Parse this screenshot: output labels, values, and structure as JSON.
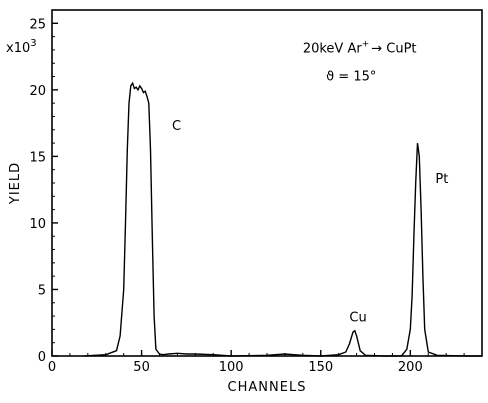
{
  "chart_data": {
    "type": "line",
    "title": "",
    "xlabel": "CHANNELS",
    "ylabel": "YIELD",
    "y_multiplier": "x10",
    "y_multiplier_exp": "3",
    "xlim": [
      0,
      240
    ],
    "ylim": [
      0,
      26000
    ],
    "x_ticks": [
      0,
      50,
      100,
      150,
      200
    ],
    "y_ticks": [
      0,
      5000,
      10000,
      15000,
      20000,
      25000
    ],
    "x_tick_labels": [
      "0",
      "50",
      "100",
      "150",
      "200"
    ],
    "y_tick_labels": [
      "0",
      "5",
      "10",
      "15",
      "20",
      "25"
    ],
    "grid": false,
    "annotations": [
      {
        "text": "20keV Ar",
        "sup": "+",
        "after": "→ CuPt",
        "x": 140,
        "y": 22800
      },
      {
        "text": "ϑ = 15°",
        "x": 153,
        "y": 20700
      },
      {
        "text": "C",
        "x": 67,
        "y": 17000
      },
      {
        "text": "Cu",
        "x": 166,
        "y": 2600
      },
      {
        "text": "Pt",
        "x": 214,
        "y": 13000
      }
    ],
    "series": [
      {
        "x": [
          18,
          30,
          36,
          38,
          40,
          41,
          42,
          43,
          44,
          45,
          46,
          47,
          48,
          49,
          50,
          51,
          52,
          53,
          54,
          55,
          56,
          57,
          58,
          60,
          62,
          65,
          70,
          75,
          80,
          90,
          100,
          120,
          130,
          135,
          140,
          150,
          160,
          164,
          166,
          168,
          169,
          170,
          172,
          175,
          185,
          195,
          198,
          200,
          201,
          202,
          203,
          204,
          205,
          206,
          207,
          208,
          210,
          215,
          230,
          240
        ],
        "y": [
          0,
          100,
          400,
          1500,
          5000,
          10000,
          15500,
          19000,
          20300,
          20500,
          20100,
          20200,
          20000,
          20300,
          20100,
          19800,
          19900,
          19500,
          19000,
          15500,
          9000,
          3000,
          500,
          150,
          100,
          150,
          200,
          150,
          150,
          100,
          0,
          50,
          150,
          100,
          50,
          0,
          100,
          300,
          900,
          1800,
          1900,
          1500,
          400,
          50,
          0,
          0,
          500,
          2000,
          4500,
          9000,
          13000,
          16000,
          15000,
          11000,
          6000,
          2000,
          300,
          50,
          0,
          0
        ]
      }
    ]
  }
}
